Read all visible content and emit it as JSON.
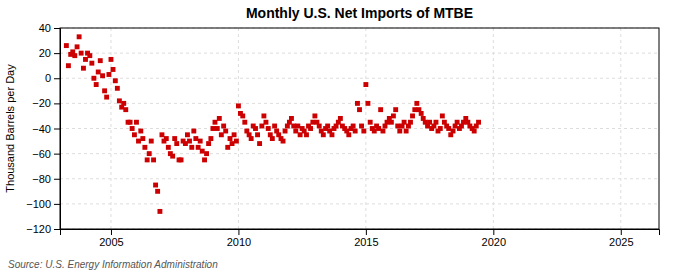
{
  "chart_data": {
    "type": "scatter",
    "title": "Monthly U.S. Net Imports of MTBE",
    "ylabel": "Thousand Barrels per Day",
    "source": "Source: U.S. Energy Information Administration",
    "color": "#cc0000",
    "marker": "square",
    "grid": true,
    "xlim": [
      2003.0,
      2026.5
    ],
    "ylim": [
      -120,
      40
    ],
    "xticks": [
      2005,
      2010,
      2015,
      2020,
      2025
    ],
    "yticks": [
      40,
      20,
      0,
      {
        "value": -20,
        "label": "−20"
      },
      {
        "value": -40,
        "label": "−40"
      },
      {
        "value": -60,
        "label": "−60"
      },
      {
        "value": -80,
        "label": "−80"
      },
      {
        "value": -100,
        "label": "−100"
      },
      {
        "value": -120,
        "label": "−120"
      }
    ],
    "x": [
      2003.25,
      2003.33,
      2003.42,
      2003.5,
      2003.58,
      2003.67,
      2003.75,
      2003.83,
      2003.92,
      2004.0,
      2004.08,
      2004.17,
      2004.25,
      2004.33,
      2004.42,
      2004.5,
      2004.58,
      2004.67,
      2004.75,
      2004.83,
      2004.92,
      2005.0,
      2005.08,
      2005.17,
      2005.25,
      2005.33,
      2005.42,
      2005.5,
      2005.58,
      2005.67,
      2005.75,
      2005.83,
      2005.92,
      2006.0,
      2006.08,
      2006.17,
      2006.25,
      2006.33,
      2006.42,
      2006.5,
      2006.58,
      2006.67,
      2006.75,
      2006.83,
      2006.92,
      2007.0,
      2007.08,
      2007.17,
      2007.25,
      2007.33,
      2007.42,
      2007.5,
      2007.58,
      2007.67,
      2007.75,
      2007.83,
      2007.92,
      2008.0,
      2008.08,
      2008.17,
      2008.25,
      2008.33,
      2008.42,
      2008.5,
      2008.58,
      2008.67,
      2008.75,
      2008.83,
      2008.92,
      2009.0,
      2009.08,
      2009.17,
      2009.25,
      2009.33,
      2009.42,
      2009.5,
      2009.58,
      2009.67,
      2009.75,
      2009.83,
      2009.92,
      2010.0,
      2010.08,
      2010.17,
      2010.25,
      2010.33,
      2010.42,
      2010.5,
      2010.58,
      2010.67,
      2010.75,
      2010.83,
      2010.92,
      2011.0,
      2011.08,
      2011.17,
      2011.25,
      2011.33,
      2011.42,
      2011.5,
      2011.58,
      2011.67,
      2011.75,
      2011.83,
      2011.92,
      2012.0,
      2012.08,
      2012.17,
      2012.25,
      2012.33,
      2012.42,
      2012.5,
      2012.58,
      2012.67,
      2012.75,
      2012.83,
      2012.92,
      2013.0,
      2013.08,
      2013.17,
      2013.25,
      2013.33,
      2013.42,
      2013.5,
      2013.58,
      2013.67,
      2013.75,
      2013.83,
      2013.92,
      2014.0,
      2014.08,
      2014.17,
      2014.25,
      2014.33,
      2014.42,
      2014.5,
      2014.58,
      2014.67,
      2014.75,
      2014.83,
      2014.92,
      2015.0,
      2015.08,
      2015.17,
      2015.25,
      2015.33,
      2015.42,
      2015.5,
      2015.58,
      2015.67,
      2015.75,
      2015.83,
      2015.92,
      2016.0,
      2016.08,
      2016.17,
      2016.25,
      2016.33,
      2016.42,
      2016.5,
      2016.58,
      2016.67,
      2016.75,
      2016.83,
      2016.92,
      2017.0,
      2017.08,
      2017.17,
      2017.25,
      2017.33,
      2017.42,
      2017.5,
      2017.58,
      2017.67,
      2017.75,
      2017.83,
      2017.92,
      2018.0,
      2018.08,
      2018.17,
      2018.25,
      2018.33,
      2018.42,
      2018.5,
      2018.58,
      2018.67,
      2018.75,
      2018.83,
      2018.92,
      2019.0,
      2019.08,
      2019.17,
      2019.25,
      2019.33,
      2019.42
    ],
    "values": [
      26,
      10,
      19,
      21,
      18,
      25,
      33,
      20,
      8,
      15,
      20,
      18,
      12,
      0,
      -5,
      5,
      14,
      2,
      -10,
      -15,
      3,
      15,
      7,
      -2,
      -8,
      -18,
      -23,
      -20,
      -25,
      -35,
      -35,
      -40,
      -45,
      -35,
      -50,
      -42,
      -48,
      -55,
      -65,
      -60,
      -50,
      -65,
      -85,
      -90,
      -106,
      -45,
      -50,
      -48,
      -55,
      -60,
      -62,
      -48,
      -52,
      -65,
      -65,
      -50,
      -52,
      -45,
      -50,
      -55,
      -42,
      -48,
      -55,
      -50,
      -58,
      -65,
      -60,
      -52,
      -48,
      -40,
      -35,
      -40,
      -32,
      -45,
      -38,
      -42,
      -55,
      -48,
      -52,
      -45,
      -50,
      -22,
      -28,
      -30,
      -35,
      -42,
      -45,
      -48,
      -38,
      -40,
      -45,
      -52,
      -38,
      -30,
      -35,
      -40,
      -45,
      -48,
      -38,
      -42,
      -45,
      -48,
      -50,
      -42,
      -38,
      -35,
      -32,
      -38,
      -42,
      -38,
      -45,
      -40,
      -42,
      -45,
      -38,
      -40,
      -35,
      -30,
      -35,
      -38,
      -42,
      -45,
      -40,
      -38,
      -42,
      -45,
      -40,
      -38,
      -35,
      -32,
      -38,
      -40,
      -42,
      -45,
      -40,
      -38,
      -42,
      -20,
      -25,
      -38,
      -42,
      -5,
      -20,
      -35,
      -40,
      -42,
      -38,
      -40,
      -25,
      -42,
      -38,
      -35,
      -32,
      -35,
      -30,
      -25,
      -38,
      -42,
      -38,
      -35,
      -42,
      -38,
      -35,
      -30,
      -25,
      -20,
      -25,
      -28,
      -32,
      -35,
      -38,
      -35,
      -40,
      -38,
      -35,
      -42,
      -40,
      -30,
      -35,
      -38,
      -40,
      -45,
      -42,
      -38,
      -35,
      -40,
      -38,
      -35,
      -32,
      -35,
      -38,
      -40,
      -42,
      -38,
      -35
    ]
  }
}
